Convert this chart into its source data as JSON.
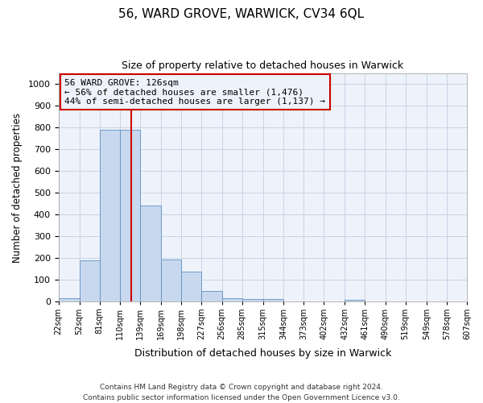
{
  "title": "56, WARD GROVE, WARWICK, CV34 6QL",
  "subtitle": "Size of property relative to detached houses in Warwick",
  "xlabel": "Distribution of detached houses by size in Warwick",
  "ylabel": "Number of detached properties",
  "bar_color": "#c8d8ee",
  "bar_edge_color": "#6090c0",
  "grid_color": "#c8d4e8",
  "bg_color": "#ffffff",
  "axes_bg_color": "#eef2fa",
  "vline_color": "#cc0000",
  "vline_x": 126,
  "annotation_text": "56 WARD GROVE: 126sqm\n← 56% of detached houses are smaller (1,476)\n44% of semi-detached houses are larger (1,137) →",
  "annotation_box_edge_color": "#cc0000",
  "bin_edges": [
    22,
    52,
    81,
    110,
    139,
    169,
    198,
    227,
    256,
    285,
    315,
    344,
    373,
    402,
    432,
    461,
    490,
    519,
    549,
    578,
    607
  ],
  "bar_heights": [
    18,
    190,
    790,
    790,
    440,
    195,
    140,
    50,
    15,
    12,
    12,
    0,
    0,
    0,
    10,
    0,
    0,
    0,
    0,
    0
  ],
  "ylim": [
    0,
    1050
  ],
  "yticks": [
    0,
    100,
    200,
    300,
    400,
    500,
    600,
    700,
    800,
    900,
    1000
  ],
  "xlim": [
    22,
    607
  ],
  "footer_text": "Contains HM Land Registry data © Crown copyright and database right 2024.\nContains public sector information licensed under the Open Government Licence v3.0."
}
